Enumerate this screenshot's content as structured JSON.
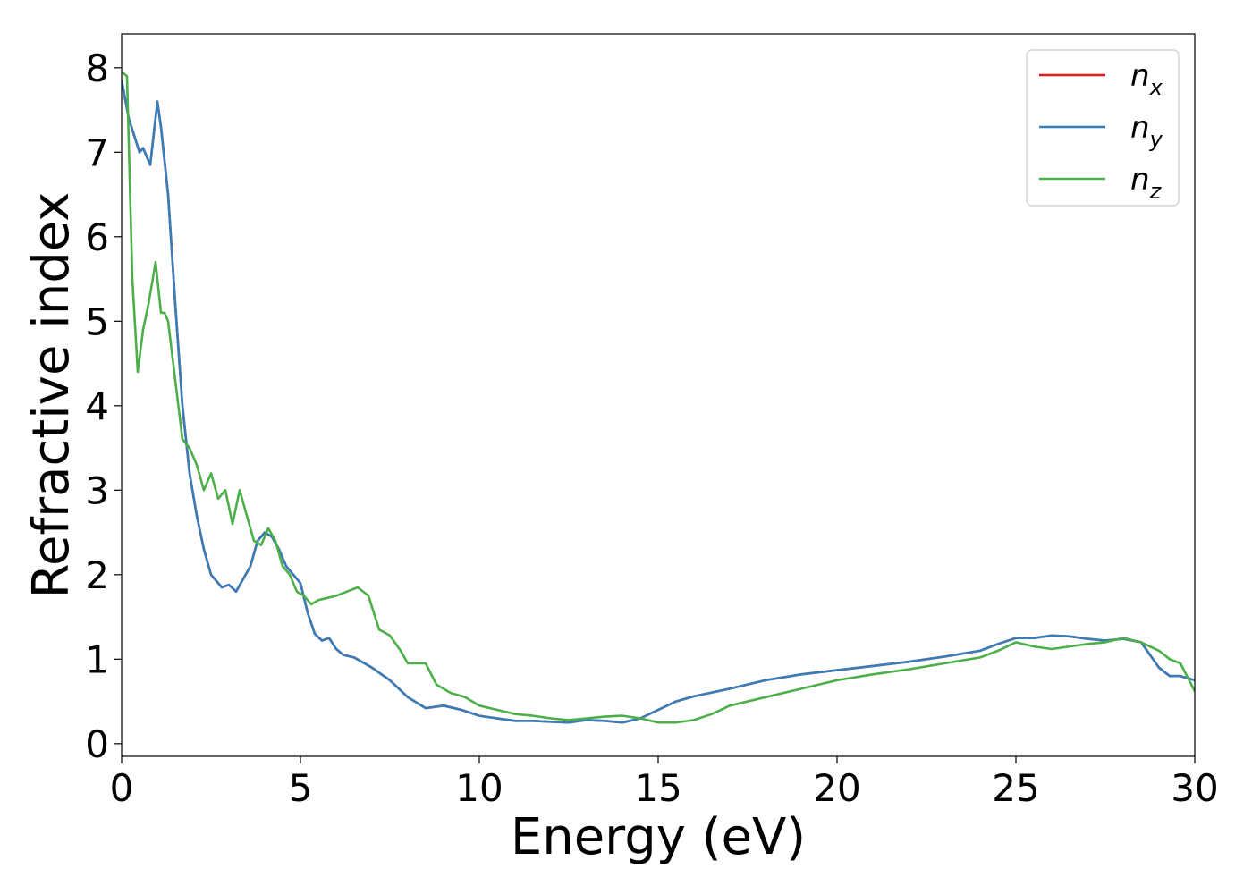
{
  "chart_data": {
    "type": "line",
    "title": "",
    "xlabel": "Energy (eV)",
    "ylabel": "Refractive index",
    "xlim": [
      0,
      30
    ],
    "ylim": [
      -0.15,
      8.4
    ],
    "xticks": [
      0,
      5,
      10,
      15,
      20,
      25,
      30
    ],
    "yticks": [
      0,
      1,
      2,
      3,
      4,
      5,
      6,
      7,
      8
    ],
    "grid": false,
    "legend_position": "top-right",
    "series": [
      {
        "name": "n_x",
        "label_base": "n",
        "label_sub": "x",
        "color": "#e41a1c",
        "x": [
          0,
          0.2,
          0.5,
          0.6,
          0.8,
          1.0,
          1.1,
          1.3,
          1.5,
          1.7,
          1.9,
          2.1,
          2.3,
          2.5,
          2.8,
          3.0,
          3.2,
          3.4,
          3.6,
          3.8,
          4.0,
          4.2,
          4.4,
          4.6,
          4.8,
          5.0,
          5.2,
          5.4,
          5.6,
          5.8,
          6.0,
          6.2,
          6.5,
          7.0,
          7.5,
          8.0,
          8.5,
          9.0,
          9.5,
          10,
          10.5,
          11,
          11.5,
          12,
          12.5,
          13,
          13.5,
          14,
          14.5,
          15,
          15.5,
          16,
          17,
          18,
          19,
          20,
          21,
          22,
          23,
          24,
          24.5,
          25,
          25.5,
          26,
          26.5,
          27,
          27.5,
          28,
          28.5,
          29,
          29.3,
          29.6,
          30
        ],
        "y": [
          7.85,
          7.4,
          7.0,
          7.05,
          6.85,
          7.6,
          7.3,
          6.5,
          5.2,
          4.0,
          3.2,
          2.7,
          2.3,
          2.0,
          1.85,
          1.88,
          1.8,
          1.95,
          2.1,
          2.4,
          2.5,
          2.45,
          2.3,
          2.1,
          2.0,
          1.9,
          1.55,
          1.3,
          1.22,
          1.25,
          1.12,
          1.05,
          1.02,
          0.9,
          0.75,
          0.55,
          0.42,
          0.45,
          0.4,
          0.33,
          0.3,
          0.27,
          0.27,
          0.26,
          0.25,
          0.28,
          0.27,
          0.25,
          0.3,
          0.4,
          0.5,
          0.56,
          0.65,
          0.75,
          0.82,
          0.87,
          0.92,
          0.97,
          1.03,
          1.1,
          1.18,
          1.25,
          1.25,
          1.28,
          1.27,
          1.24,
          1.22,
          1.24,
          1.2,
          0.9,
          0.8,
          0.8,
          0.75
        ]
      },
      {
        "name": "n_y",
        "label_base": "n",
        "label_sub": "y",
        "color": "#377eb8",
        "x": [
          0,
          0.2,
          0.5,
          0.6,
          0.8,
          1.0,
          1.1,
          1.3,
          1.5,
          1.7,
          1.9,
          2.1,
          2.3,
          2.5,
          2.8,
          3.0,
          3.2,
          3.4,
          3.6,
          3.8,
          4.0,
          4.2,
          4.4,
          4.6,
          4.8,
          5.0,
          5.2,
          5.4,
          5.6,
          5.8,
          6.0,
          6.2,
          6.5,
          7.0,
          7.5,
          8.0,
          8.5,
          9.0,
          9.5,
          10,
          10.5,
          11,
          11.5,
          12,
          12.5,
          13,
          13.5,
          14,
          14.5,
          15,
          15.5,
          16,
          17,
          18,
          19,
          20,
          21,
          22,
          23,
          24,
          24.5,
          25,
          25.5,
          26,
          26.5,
          27,
          27.5,
          28,
          28.5,
          29,
          29.3,
          29.6,
          30
        ],
        "y": [
          7.85,
          7.4,
          7.0,
          7.05,
          6.85,
          7.6,
          7.3,
          6.5,
          5.2,
          4.0,
          3.2,
          2.7,
          2.3,
          2.0,
          1.85,
          1.88,
          1.8,
          1.95,
          2.1,
          2.4,
          2.5,
          2.45,
          2.3,
          2.1,
          2.0,
          1.9,
          1.55,
          1.3,
          1.22,
          1.25,
          1.12,
          1.05,
          1.02,
          0.9,
          0.75,
          0.55,
          0.42,
          0.45,
          0.4,
          0.33,
          0.3,
          0.27,
          0.27,
          0.26,
          0.25,
          0.28,
          0.27,
          0.25,
          0.3,
          0.4,
          0.5,
          0.56,
          0.65,
          0.75,
          0.82,
          0.87,
          0.92,
          0.97,
          1.03,
          1.1,
          1.18,
          1.25,
          1.25,
          1.28,
          1.27,
          1.24,
          1.22,
          1.24,
          1.2,
          0.9,
          0.8,
          0.8,
          0.75
        ]
      },
      {
        "name": "n_z",
        "label_base": "n",
        "label_sub": "z",
        "color": "#4daf4a",
        "x": [
          0,
          0.15,
          0.3,
          0.45,
          0.6,
          0.75,
          0.95,
          1.1,
          1.2,
          1.3,
          1.5,
          1.7,
          1.9,
          2.1,
          2.3,
          2.5,
          2.7,
          2.9,
          3.1,
          3.3,
          3.5,
          3.7,
          3.9,
          4.1,
          4.3,
          4.5,
          4.7,
          4.9,
          5.1,
          5.3,
          5.5,
          5.7,
          6.0,
          6.3,
          6.6,
          6.9,
          7.2,
          7.5,
          7.8,
          8.0,
          8.5,
          8.8,
          9.2,
          9.6,
          10.0,
          10.5,
          11.0,
          11.5,
          12.0,
          12.5,
          13.0,
          13.5,
          14.0,
          14.5,
          15.0,
          15.5,
          16.0,
          16.5,
          17.0,
          18.0,
          19.0,
          20.0,
          21.0,
          22.0,
          23.0,
          24.0,
          24.5,
          25.0,
          25.5,
          26.0,
          26.5,
          27.0,
          27.5,
          28.0,
          28.5,
          29.0,
          29.3,
          29.6,
          30.0
        ],
        "y": [
          7.95,
          7.9,
          5.5,
          4.4,
          4.9,
          5.2,
          5.7,
          5.1,
          5.1,
          5.0,
          4.3,
          3.6,
          3.5,
          3.3,
          3.0,
          3.2,
          2.9,
          3.0,
          2.6,
          3.0,
          2.7,
          2.4,
          2.35,
          2.55,
          2.4,
          2.1,
          2.0,
          1.8,
          1.75,
          1.65,
          1.7,
          1.72,
          1.75,
          1.8,
          1.85,
          1.75,
          1.35,
          1.28,
          1.1,
          0.95,
          0.95,
          0.7,
          0.6,
          0.55,
          0.45,
          0.4,
          0.35,
          0.33,
          0.3,
          0.28,
          0.3,
          0.32,
          0.33,
          0.3,
          0.25,
          0.25,
          0.28,
          0.35,
          0.45,
          0.55,
          0.65,
          0.75,
          0.82,
          0.88,
          0.95,
          1.02,
          1.1,
          1.2,
          1.15,
          1.12,
          1.15,
          1.18,
          1.2,
          1.25,
          1.2,
          1.1,
          1.0,
          0.95,
          0.62
        ]
      }
    ]
  }
}
